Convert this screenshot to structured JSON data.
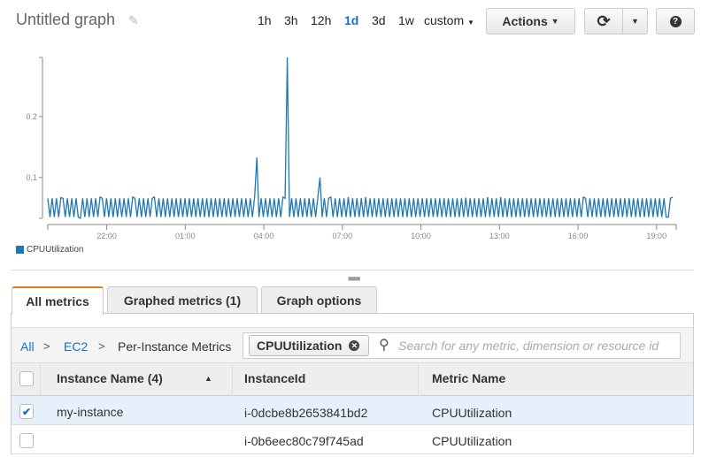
{
  "header": {
    "title": "Untitled graph",
    "time_ranges": [
      "1h",
      "3h",
      "12h",
      "1d",
      "3d",
      "1w",
      "custom"
    ],
    "active_range": "1d",
    "actions_label": "Actions"
  },
  "icons": {
    "edit": "pencil-icon",
    "refresh": "refresh-icon",
    "help": "question-circle-icon",
    "search": "search-icon",
    "remove": "close-circle-icon",
    "sort": "sort-asc-icon",
    "check": "check-icon"
  },
  "colors": {
    "series": "#1f77b4",
    "link": "#1a6fc4",
    "active_tab_accent": "#e47911",
    "selected_row": "#e6f0fa"
  },
  "chart_data": {
    "type": "line",
    "xlim": [
      "19:45",
      "19:45"
    ],
    "x_ticks": [
      "22:00",
      "01:00",
      "04:00",
      "07:00",
      "10:00",
      "13:00",
      "16:00",
      "19:00"
    ],
    "y_ticks": [
      "0.1",
      "0.2"
    ],
    "ylim": [
      0.033,
      0.297
    ],
    "legend": "bottom-left",
    "series": [
      {
        "name": "CPUUtilization",
        "values": [
          0.066,
          0.035,
          0.066,
          0.035,
          0.066,
          0.035,
          0.067,
          0.066,
          0.035,
          0.066,
          0.035,
          0.066,
          0.035,
          0.066,
          0.035,
          0.033,
          0.066,
          0.035,
          0.066,
          0.035,
          0.066,
          0.035,
          0.066,
          0.035,
          0.068,
          0.066,
          0.035,
          0.066,
          0.035,
          0.066,
          0.035,
          0.066,
          0.035,
          0.066,
          0.035,
          0.066,
          0.035,
          0.066,
          0.035,
          0.068,
          0.066,
          0.035,
          0.066,
          0.035,
          0.066,
          0.035,
          0.066,
          0.035,
          0.066,
          0.068,
          0.035,
          0.066,
          0.035,
          0.066,
          0.035,
          0.066,
          0.035,
          0.066,
          0.035,
          0.066,
          0.035,
          0.066,
          0.035,
          0.066,
          0.035,
          0.066,
          0.035,
          0.066,
          0.035,
          0.066,
          0.035,
          0.066,
          0.035,
          0.066,
          0.035,
          0.066,
          0.035,
          0.066,
          0.035,
          0.066,
          0.035,
          0.066,
          0.035,
          0.066,
          0.035,
          0.066,
          0.035,
          0.066,
          0.035,
          0.066,
          0.035,
          0.066,
          0.035,
          0.066,
          0.035,
          0.068,
          0.133,
          0.035,
          0.066,
          0.035,
          0.066,
          0.035,
          0.066,
          0.035,
          0.066,
          0.035,
          0.066,
          0.035,
          0.068,
          0.066,
          0.297,
          0.035,
          0.066,
          0.035,
          0.066,
          0.035,
          0.066,
          0.035,
          0.066,
          0.035,
          0.066,
          0.035,
          0.066,
          0.035,
          0.066,
          0.1,
          0.035,
          0.066,
          0.035,
          0.066,
          0.068,
          0.035,
          0.066,
          0.035,
          0.066,
          0.035,
          0.066,
          0.035,
          0.068,
          0.035,
          0.066,
          0.035,
          0.066,
          0.035,
          0.066,
          0.035,
          0.068,
          0.035,
          0.066,
          0.035,
          0.066,
          0.035,
          0.066,
          0.035,
          0.066,
          0.035,
          0.066,
          0.035,
          0.066,
          0.035,
          0.066,
          0.035,
          0.066,
          0.035,
          0.066,
          0.035,
          0.066,
          0.035,
          0.066,
          0.035,
          0.066,
          0.035,
          0.066,
          0.035,
          0.066,
          0.035,
          0.066,
          0.035,
          0.066,
          0.035,
          0.066,
          0.035,
          0.066,
          0.035,
          0.066,
          0.035,
          0.066,
          0.035,
          0.066,
          0.035,
          0.066,
          0.035,
          0.067,
          0.035,
          0.066,
          0.035,
          0.066,
          0.035,
          0.066,
          0.035,
          0.066,
          0.035,
          0.068,
          0.035,
          0.066,
          0.035,
          0.066,
          0.035,
          0.068,
          0.035,
          0.066,
          0.035,
          0.066,
          0.035,
          0.066,
          0.035,
          0.066,
          0.035,
          0.066,
          0.035,
          0.066,
          0.035,
          0.066,
          0.035,
          0.066,
          0.035,
          0.066,
          0.035,
          0.066,
          0.035,
          0.066,
          0.035,
          0.066,
          0.035,
          0.066,
          0.035,
          0.066,
          0.035,
          0.066,
          0.035,
          0.066,
          0.035,
          0.066,
          0.035,
          0.066,
          0.035,
          0.068,
          0.066,
          0.035,
          0.066,
          0.035,
          0.066,
          0.035,
          0.066,
          0.035,
          0.066,
          0.035,
          0.066,
          0.035,
          0.066,
          0.035,
          0.066,
          0.035,
          0.066,
          0.035,
          0.066,
          0.035,
          0.066,
          0.035,
          0.066,
          0.035,
          0.066,
          0.035,
          0.066,
          0.035,
          0.066,
          0.035,
          0.066,
          0.035,
          0.066,
          0.035,
          0.066,
          0.035,
          0.066,
          0.035,
          0.035,
          0.066,
          0.068
        ]
      }
    ]
  },
  "tabs": [
    {
      "label": "All metrics",
      "active": true
    },
    {
      "label": "Graphed metrics (1)"
    },
    {
      "label": "Graph options"
    }
  ],
  "breadcrumb": [
    "All",
    "EC2",
    "Per-Instance Metrics"
  ],
  "breadcrumb_sep": ">",
  "search": {
    "token": "CPUUtilization",
    "placeholder": "Search for any metric, dimension or resource id"
  },
  "table": {
    "columns": [
      "Instance Name (4)",
      "InstanceId",
      "Metric Name"
    ],
    "rows": [
      {
        "checked": true,
        "name": "my-instance",
        "id": "i-0dcbe8b2653841bd2",
        "metric": "CPUUtilization"
      },
      {
        "checked": false,
        "name": "",
        "id": "i-0b6eec80c79f745ad",
        "metric": "CPUUtilization"
      }
    ]
  }
}
